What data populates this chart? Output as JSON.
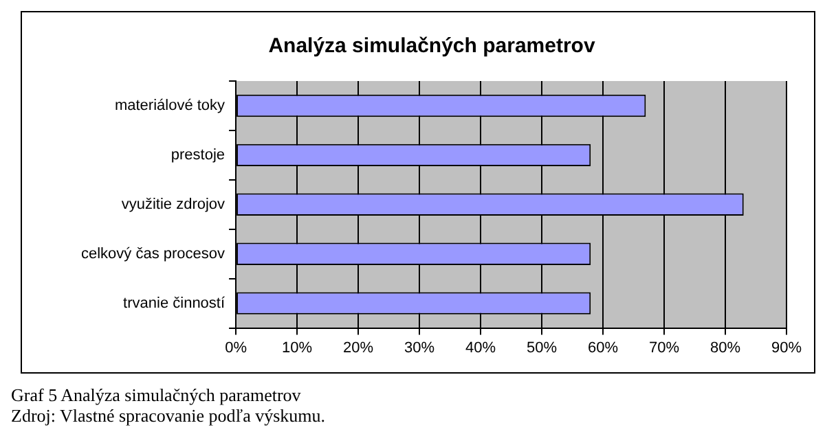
{
  "chart_data": {
    "type": "bar",
    "orientation": "horizontal",
    "title": "Analýza simulačných parametrov",
    "categories": [
      "materiálové toky",
      "prestoje",
      "využitie zdrojov",
      "celkový čas procesov",
      "trvanie činností"
    ],
    "values": [
      67,
      58,
      83,
      58,
      58
    ],
    "color": "#9999ff",
    "xlim": [
      0,
      90
    ],
    "xticks": [
      {
        "value": 0,
        "label": "0%"
      },
      {
        "value": 10,
        "label": "10%"
      },
      {
        "value": 20,
        "label": "20%"
      },
      {
        "value": 30,
        "label": "30%"
      },
      {
        "value": 40,
        "label": "40%"
      },
      {
        "value": 50,
        "label": "50%"
      },
      {
        "value": 60,
        "label": "60%"
      },
      {
        "value": 70,
        "label": "70%"
      },
      {
        "value": 80,
        "label": "80%"
      },
      {
        "value": 90,
        "label": "90%"
      }
    ],
    "grid": "x",
    "legend": false,
    "annotations": [
      "Graf 5 Analýza simulačných parametrov",
      "Zdroj: Vlastné spracovanie podľa výskumu."
    ]
  }
}
